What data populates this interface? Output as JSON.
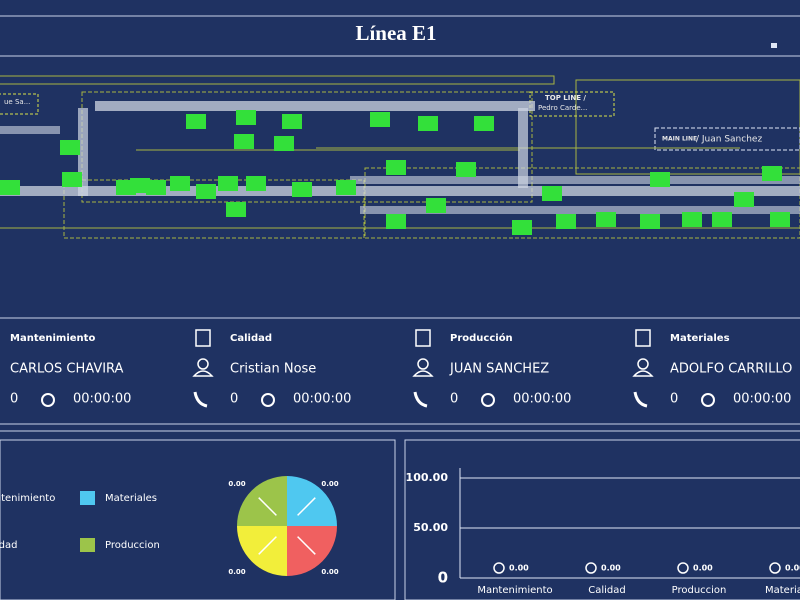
{
  "header": {
    "title": "Línea E1"
  },
  "layout": {
    "labels": [
      "ue Sa...",
      "TOP LINE /",
      "Pedro Carde...",
      "MAIN LINE",
      "/ Juan Sanchez"
    ]
  },
  "staff": [
    {
      "area": "Mantenimiento",
      "name": "CARLOS CHAVIRA",
      "count": "0",
      "time": "00:00:00"
    },
    {
      "area": "Calidad",
      "name": "Cristian Nose",
      "count": "0",
      "time": "00:00:00"
    },
    {
      "area": "Producción",
      "name": "JUAN SANCHEZ",
      "count": "0",
      "time": "00:00:00"
    },
    {
      "area": "Materiales",
      "name": "ADOLFO CARRILLO",
      "count": "0",
      "time": "00:00:00"
    }
  ],
  "chart_data": [
    {
      "type": "pie",
      "categories": [
        "Materiales",
        "Mantenimiento",
        "Calidad",
        "Produccion"
      ],
      "values": [
        0,
        0,
        0,
        0
      ],
      "value_labels": [
        "0.00",
        "0.00",
        "0.00",
        "0.00"
      ],
      "colors": [
        "#4fc8f0",
        "#f06060",
        "#f2ee3a",
        "#9cc44a"
      ]
    },
    {
      "type": "bar",
      "categories": [
        "Mantenimiento",
        "Calidad",
        "Produccion",
        "Materiales"
      ],
      "values": [
        0,
        0,
        0,
        0
      ],
      "value_labels": [
        "0.00",
        "0.00",
        "0.00",
        "0.00"
      ],
      "color": "#4f81bd",
      "ylim": [
        0,
        100
      ],
      "yticks": [
        0,
        {
          "value": 50,
          "label": "50.00"
        },
        {
          "value": 100,
          "label": "100.00"
        }
      ],
      "grid": true
    }
  ]
}
